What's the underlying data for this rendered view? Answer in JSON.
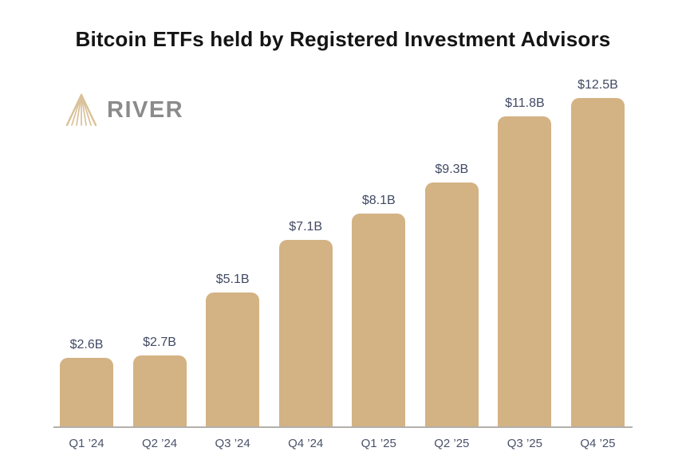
{
  "header": {
    "title": "Bitcoin ETFs held by Registered Investment Advisors"
  },
  "logo": {
    "text": "RIVER",
    "icon": "river-rays-icon",
    "icon_color": "#d9c199",
    "text_color": "#8b8b8b"
  },
  "chart_data": {
    "type": "bar",
    "title": "Bitcoin ETFs held by Registered Investment Advisors",
    "categories": [
      "Q1 ’24",
      "Q2 ’24",
      "Q3 ’24",
      "Q4 ’24",
      "Q1 ’25",
      "Q2 ’25",
      "Q3 ’25",
      "Q4 ’25"
    ],
    "values": [
      2.6,
      2.7,
      5.1,
      7.1,
      8.1,
      9.3,
      11.8,
      12.5
    ],
    "labels": [
      "$2.6B",
      "$2.7B",
      "$5.1B",
      "$7.1B",
      "$8.1B",
      "$9.3B",
      "$11.8B",
      "$12.5B"
    ],
    "unit": "billions USD",
    "xlabel": "",
    "ylabel": "",
    "ylim": [
      0,
      12.5
    ],
    "grid": false,
    "legend": false,
    "bar_color": "#d3b284",
    "value_label_color": "#414a63",
    "axis_label_color": "#49526a",
    "axis_line_color": "#b3b0ab",
    "title_color": "#141414"
  }
}
